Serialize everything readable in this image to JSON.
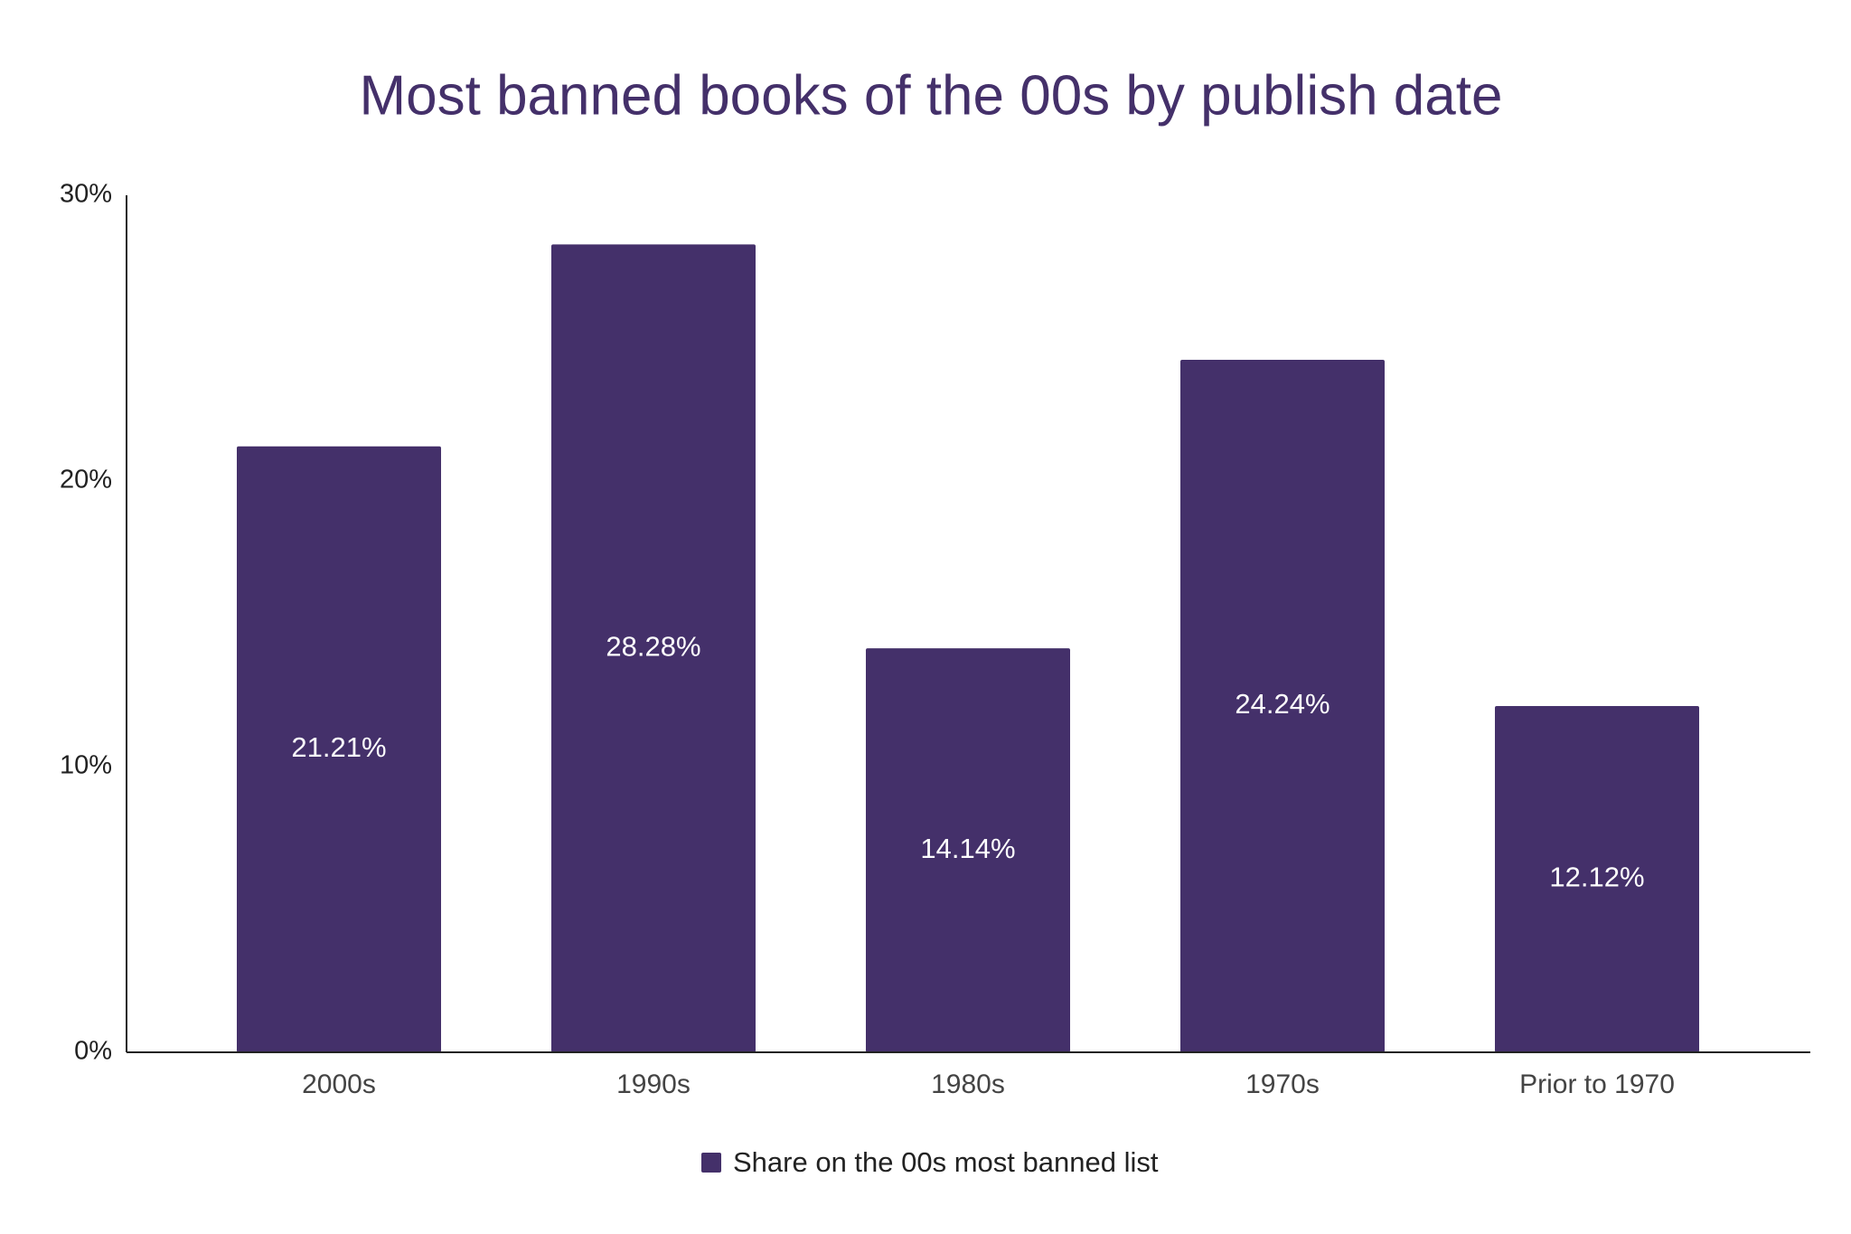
{
  "chart_data": {
    "type": "bar",
    "title": "Most banned books of the 00s by publish date",
    "categories": [
      "2000s",
      "1990s",
      "1980s",
      "1970s",
      "Prior to 1970"
    ],
    "series": [
      {
        "name": "Share on the 00s most banned list",
        "color": "#44306a",
        "values": [
          21.21,
          28.28,
          14.14,
          24.24,
          12.12
        ],
        "value_labels": [
          "21.21%",
          "28.28%",
          "14.14%",
          "24.24%",
          "12.12%"
        ]
      }
    ],
    "ylim": [
      0,
      30
    ],
    "yticks": [
      {
        "value": 0,
        "label": "0%"
      },
      {
        "value": 10,
        "label": "10%"
      },
      {
        "value": 20,
        "label": "20%"
      },
      {
        "value": 30,
        "label": "30%"
      }
    ],
    "grid": false,
    "legend": "bottom"
  }
}
